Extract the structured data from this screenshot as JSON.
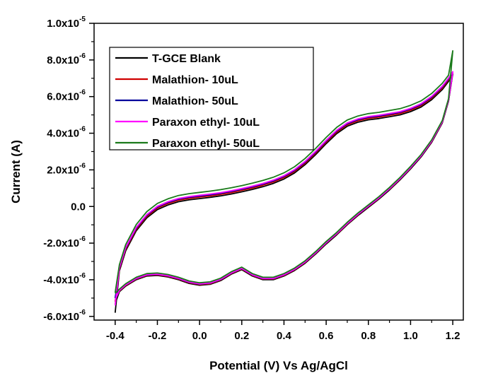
{
  "chart_data": {
    "type": "line",
    "title": "",
    "xlabel": "Potential (V) Vs Ag/AgCl",
    "ylabel": "Current (A)",
    "xlim": [
      -0.5,
      1.25
    ],
    "ylim": [
      -6.2e-06,
      1e-05
    ],
    "x_ticks": [
      -0.4,
      -0.2,
      0.0,
      0.2,
      0.4,
      0.6,
      0.8,
      1.0,
      1.2
    ],
    "x_tick_labels": [
      "-0.4",
      "-0.2",
      "0.0",
      "0.2",
      "0.4",
      "0.6",
      "0.8",
      "1.0",
      "1.2"
    ],
    "y_ticks": [
      -6e-06,
      -4e-06,
      -2e-06,
      0.0,
      2e-06,
      4e-06,
      6e-06,
      8e-06,
      1e-05
    ],
    "y_tick_labels": [
      {
        "mantissa": "-6.0x10",
        "exp": "-6"
      },
      {
        "mantissa": "-4.0x10",
        "exp": "-6"
      },
      {
        "mantissa": "-2.0x10",
        "exp": "-6"
      },
      {
        "mantissa": "0.0",
        "exp": ""
      },
      {
        "mantissa": "2.0x10",
        "exp": "-6"
      },
      {
        "mantissa": "4.0x10",
        "exp": "-6"
      },
      {
        "mantissa": "6.0x10",
        "exp": "-6"
      },
      {
        "mantissa": "8.0x10",
        "exp": "-6"
      },
      {
        "mantissa": "1.0x10",
        "exp": "-5"
      }
    ],
    "grid": false,
    "legend_position": "top-left",
    "forward_scan": {
      "x": [
        -0.4,
        -0.38,
        -0.35,
        -0.3,
        -0.25,
        -0.2,
        -0.15,
        -0.1,
        -0.05,
        0.0,
        0.05,
        0.1,
        0.15,
        0.2,
        0.25,
        0.3,
        0.35,
        0.4,
        0.45,
        0.5,
        0.55,
        0.6,
        0.65,
        0.7,
        0.75,
        0.8,
        0.85,
        0.9,
        0.95,
        1.0,
        1.05,
        1.1,
        1.15,
        1.18,
        1.2
      ],
      "y": [
        -4.6e-06,
        -3.4e-06,
        -2.3e-06,
        -1.2e-06,
        -5e-07,
        -5e-08,
        2e-07,
        3.8e-07,
        4.8e-07,
        5.5e-07,
        6.2e-07,
        7e-07,
        8e-07,
        9.2e-07,
        1.05e-06,
        1.2e-06,
        1.38e-06,
        1.62e-06,
        1.95e-06,
        2.4e-06,
        2.95e-06,
        3.55e-06,
        4.1e-06,
        4.5e-06,
        4.72e-06,
        4.85e-06,
        4.92e-06,
        5.02e-06,
        5.12e-06,
        5.3e-06,
        5.55e-06,
        5.95e-06,
        6.5e-06,
        6.95e-06,
        7.3e-06
      ]
    },
    "reverse_scan": {
      "x": [
        1.2,
        1.18,
        1.15,
        1.1,
        1.05,
        1.0,
        0.95,
        0.9,
        0.85,
        0.8,
        0.75,
        0.7,
        0.65,
        0.6,
        0.55,
        0.5,
        0.45,
        0.4,
        0.35,
        0.3,
        0.25,
        0.2,
        0.15,
        0.1,
        0.05,
        0.0,
        -0.05,
        -0.1,
        -0.15,
        -0.2,
        -0.25,
        -0.3,
        -0.35,
        -0.38,
        -0.4
      ],
      "y": [
        7.3e-06,
        5.8e-06,
        4.6e-06,
        3.55e-06,
        2.75e-06,
        2.1e-06,
        1.5e-06,
        9.5e-07,
        4.5e-07,
        0.0,
        -4.5e-07,
        -9.5e-07,
        -1.5e-06,
        -2e-06,
        -2.55e-06,
        -3.05e-06,
        -3.45e-06,
        -3.75e-06,
        -3.95e-06,
        -3.95e-06,
        -3.75e-06,
        -3.4e-06,
        -3.65e-06,
        -4e-06,
        -4.2e-06,
        -4.25e-06,
        -4.15e-06,
        -3.95e-06,
        -3.8e-06,
        -3.72e-06,
        -3.75e-06,
        -3.95e-06,
        -4.3e-06,
        -4.6e-06,
        -4.8e-06
      ]
    },
    "series": [
      {
        "name": "T-GCE Blank",
        "color": "#000000",
        "shift": -1.2e-07,
        "start_end": -5.8e-06
      },
      {
        "name": "Malathion- 10uL",
        "color": "#d00000",
        "shift": -4e-08,
        "start_end": -5.2e-06
      },
      {
        "name": "Malathion- 50uL",
        "color": "#00009c",
        "shift": 2e-08,
        "start_end": -5e-06
      },
      {
        "name": "Paraxon ethyl- 10uL",
        "color": "#ff00ff",
        "shift": 6e-08,
        "start_end": -5.4e-06
      },
      {
        "name": "Paraxon ethyl- 50uL",
        "color": "#1a7a1a",
        "shift": 2.2e-07,
        "start_end": -4.7e-06,
        "end_value": 8.5e-06
      }
    ]
  }
}
